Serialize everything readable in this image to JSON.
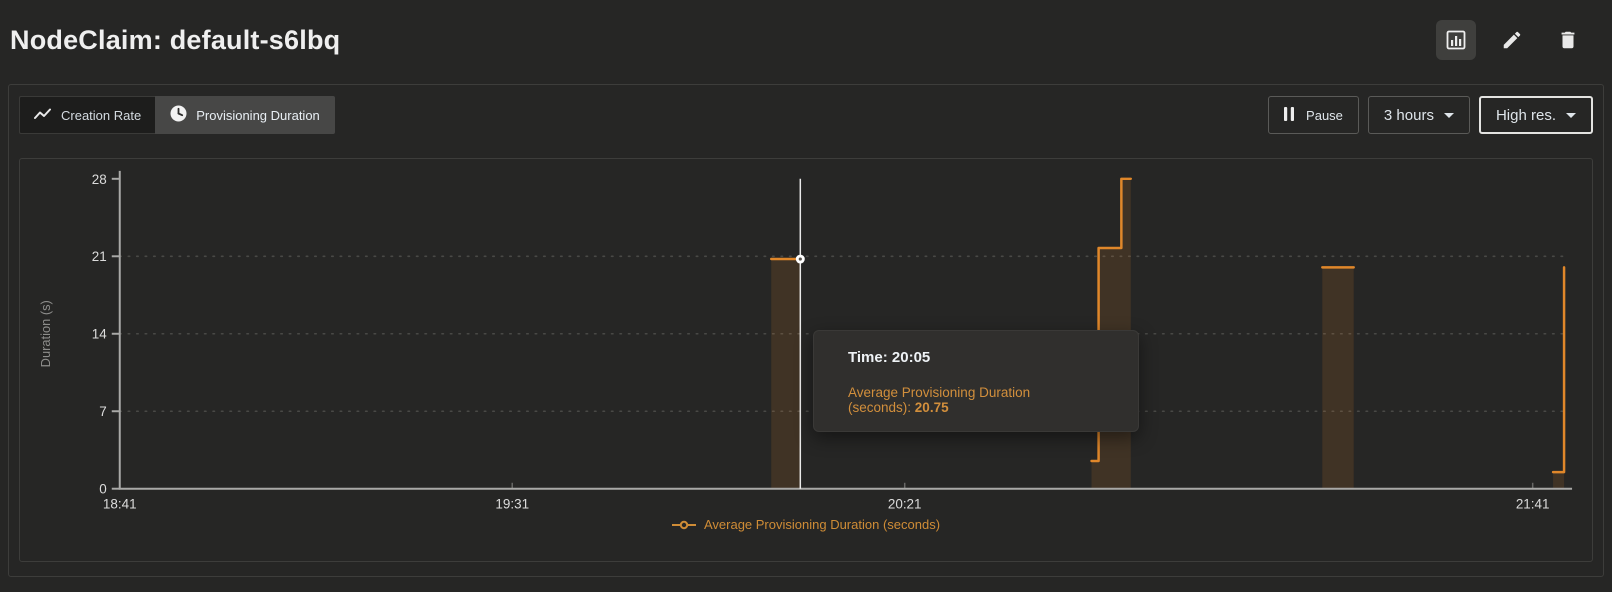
{
  "colors": {
    "accent_orange": "#e0872a",
    "legend_text_orange": "#cf8c36",
    "background": "#262625",
    "tooltip_background": "#302f2d",
    "crosshair_white": "#ffffff"
  },
  "header": {
    "title": "NodeClaim: default-s6lbq",
    "actions": [
      {
        "name": "panel-view",
        "icon": "bar-chart-icon"
      },
      {
        "name": "edit",
        "icon": "pencil-icon"
      },
      {
        "name": "delete",
        "icon": "trash-icon"
      }
    ]
  },
  "toolbar": {
    "tabs": [
      {
        "label": "Creation Rate",
        "icon": "trend-line-icon",
        "active": false
      },
      {
        "label": "Provisioning Duration",
        "icon": "clock-icon",
        "active": true
      }
    ],
    "pause_label": "Pause",
    "time_range_label": "3 hours",
    "resolution_label": "High res."
  },
  "chart_data": {
    "type": "line",
    "line_style": "step-after",
    "title": "",
    "xlabel": "",
    "ylabel": "Duration (s)",
    "y_range": [
      0,
      28
    ],
    "y_ticks": [
      0,
      7,
      14,
      21,
      28
    ],
    "x_range_minutes": [
      0,
      184
    ],
    "x_ticks": [
      {
        "label": "18:41",
        "min": 0
      },
      {
        "label": "19:31",
        "min": 50
      },
      {
        "label": "20:21",
        "min": 100
      },
      {
        "label": "21:41",
        "min": 180
      }
    ],
    "grid": "horizontal-dotted",
    "legend": "Average Provisioning Duration (seconds)",
    "legend_position": "bottom-center",
    "series": [
      {
        "name": "Average Provisioning Duration (seconds)",
        "color": "#e0872a",
        "fill_opacity": 0.14,
        "segments": [
          [
            [
              83,
              20.75
            ],
            [
              86.7,
              20.75
            ]
          ],
          [
            [
              123.8,
              2.5
            ],
            [
              124.7,
              21.75
            ],
            [
              127.6,
              28
            ],
            [
              128.8,
              28
            ]
          ],
          [
            [
              153.2,
              20
            ],
            [
              157.2,
              20
            ]
          ],
          [
            [
              182.6,
              1.5
            ],
            [
              184,
              20
            ]
          ]
        ]
      }
    ],
    "hover": {
      "time": "20:05",
      "value": 20.75,
      "x_min": 86.7
    }
  },
  "tooltip": {
    "time_label": "Time:",
    "time_value": "20:05",
    "series_label": "Average Provisioning Duration (seconds):",
    "value": "20.75"
  }
}
